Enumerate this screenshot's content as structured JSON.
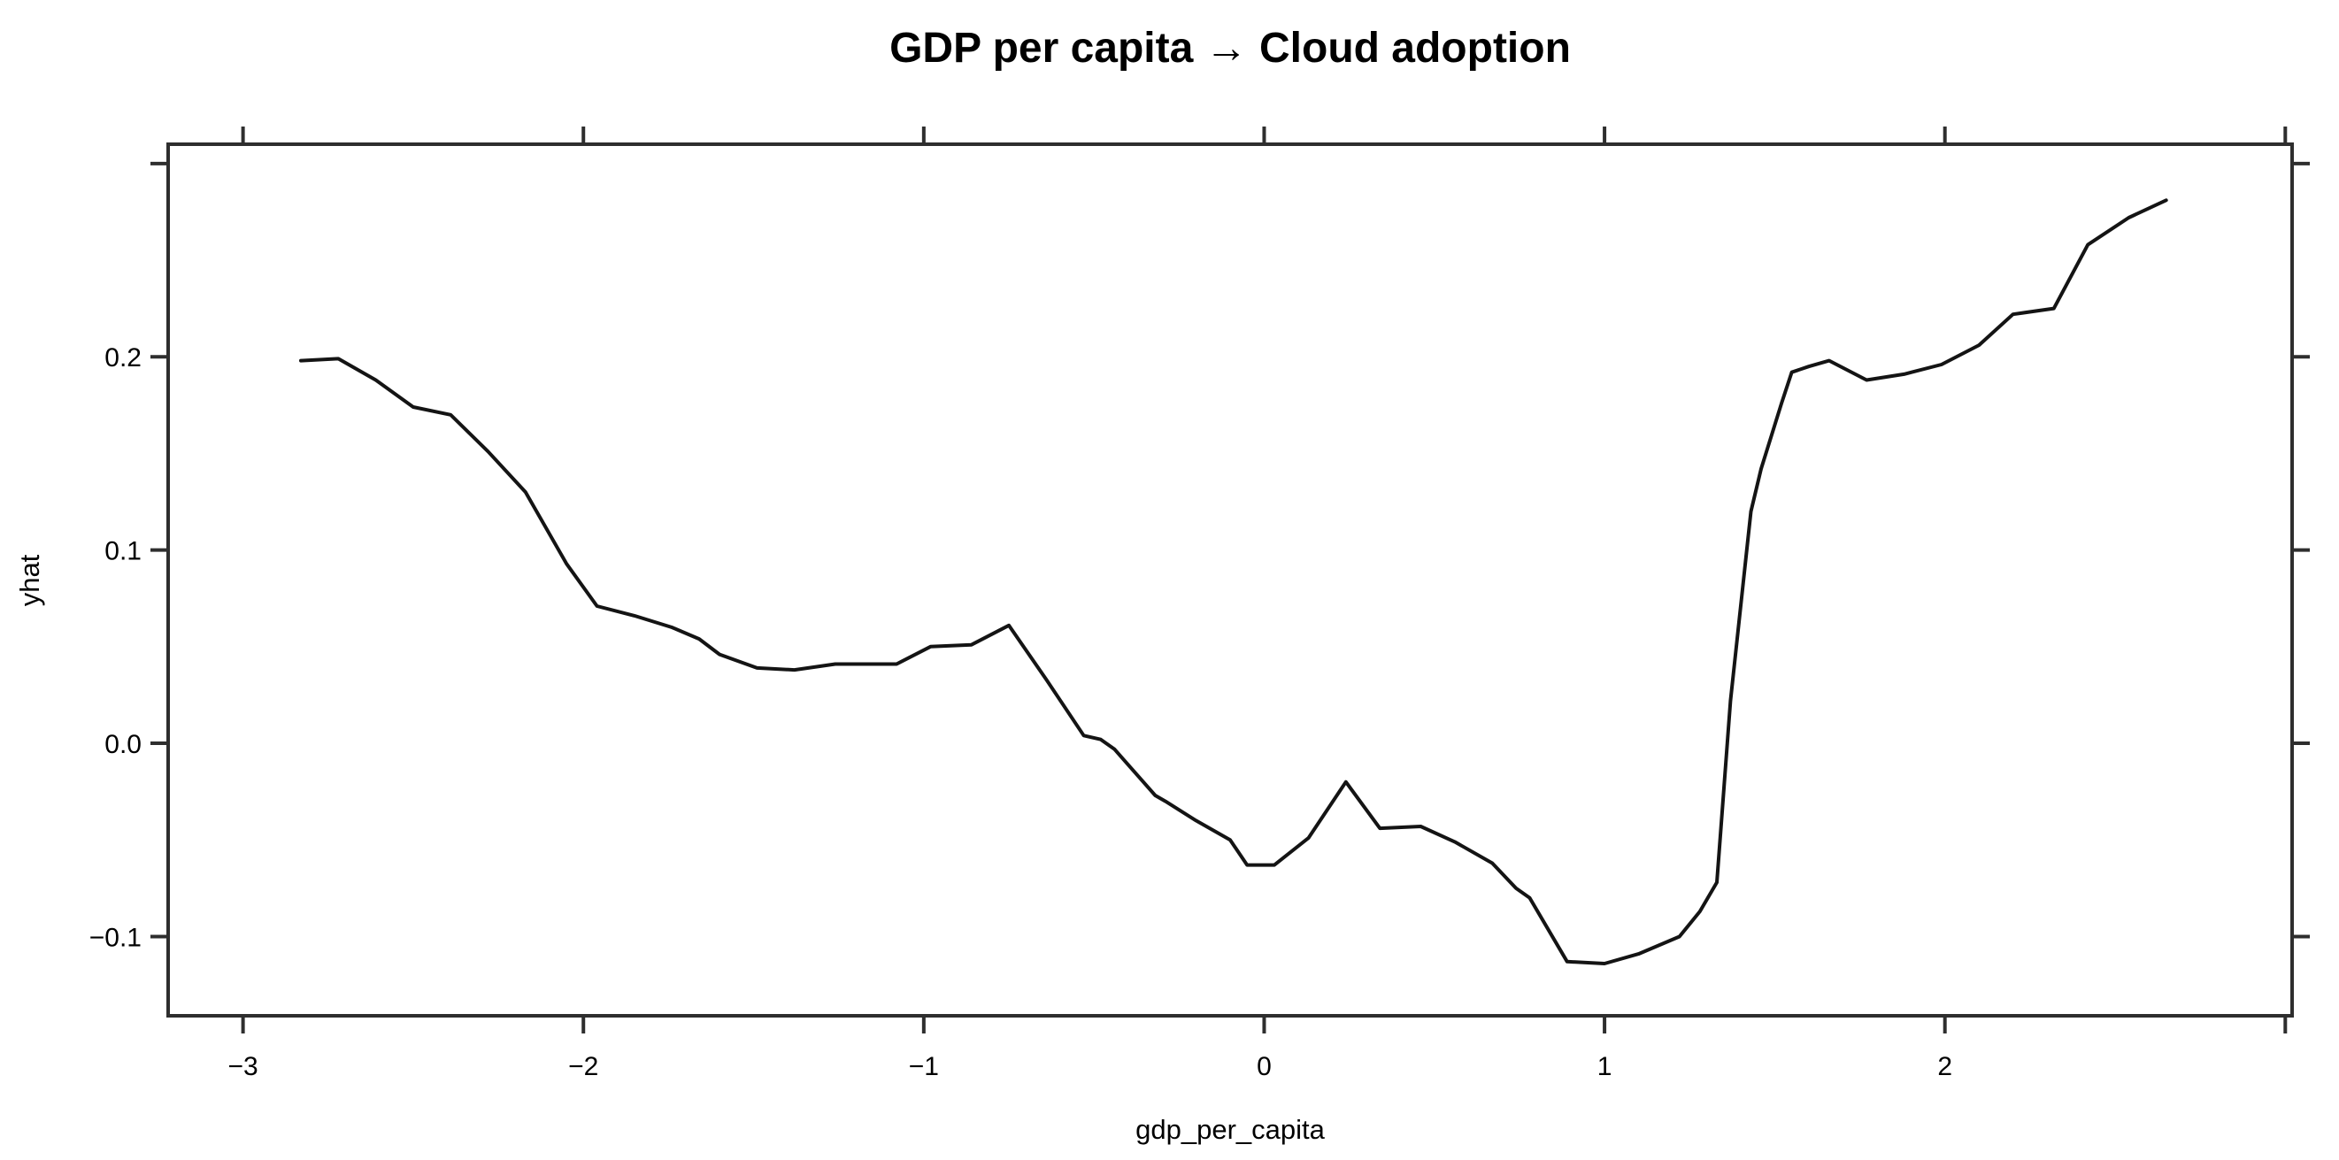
{
  "chart_data": {
    "type": "line",
    "title": "GDP per capita → Cloud adoption",
    "xlabel": "gdp_per_capita",
    "ylabel": "yhat",
    "grid": false,
    "legend": "none",
    "background_color": "#ffffff",
    "line_color": "#141414",
    "axis_color": "#2e2e2e",
    "xlim": [
      -3.22,
      3.02
    ],
    "ylim": [
      -0.141,
      0.31
    ],
    "x_ticks": [
      {
        "v": -3,
        "label": "−3"
      },
      {
        "v": -2,
        "label": "−2"
      },
      {
        "v": -1,
        "label": "−1"
      },
      {
        "v": 0,
        "label": "0"
      },
      {
        "v": 1,
        "label": "1"
      },
      {
        "v": 2,
        "label": "2"
      },
      {
        "v": 3,
        "label": ""
      }
    ],
    "y_ticks": [
      {
        "v": -0.1,
        "label": "−0.1"
      },
      {
        "v": 0.0,
        "label": "0.0"
      },
      {
        "v": 0.1,
        "label": "0.1"
      },
      {
        "v": 0.2,
        "label": "0.2"
      },
      {
        "v": 0.3,
        "label": ""
      }
    ],
    "series": [
      {
        "name": "yhat",
        "x": [
          -2.83,
          -2.72,
          -2.61,
          -2.5,
          -2.39,
          -2.28,
          -2.17,
          -2.05,
          -1.96,
          -1.85,
          -1.74,
          -1.66,
          -1.6,
          -1.49,
          -1.38,
          -1.26,
          -1.15,
          -1.08,
          -0.98,
          -0.86,
          -0.75,
          -0.64,
          -0.53,
          -0.48,
          -0.44,
          -0.32,
          -0.29,
          -0.2,
          -0.1,
          -0.05,
          0.03,
          0.13,
          0.24,
          0.34,
          0.46,
          0.56,
          0.67,
          0.74,
          0.78,
          0.89,
          1.0,
          1.1,
          1.22,
          1.28,
          1.33,
          1.37,
          1.43,
          1.46,
          1.52,
          1.55,
          1.6,
          1.66,
          1.77,
          1.88,
          1.99,
          2.1,
          2.2,
          2.32,
          2.42,
          2.54,
          2.65
        ],
        "y": [
          0.198,
          0.199,
          0.188,
          0.174,
          0.17,
          0.151,
          0.13,
          0.093,
          0.071,
          0.066,
          0.06,
          0.054,
          0.046,
          0.039,
          0.038,
          0.041,
          0.041,
          0.041,
          0.05,
          0.051,
          0.061,
          0.033,
          0.004,
          0.002,
          -0.003,
          -0.027,
          -0.03,
          -0.04,
          -0.05,
          -0.063,
          -0.063,
          -0.049,
          -0.02,
          -0.044,
          -0.043,
          -0.051,
          -0.062,
          -0.075,
          -0.08,
          -0.113,
          -0.114,
          -0.109,
          -0.1,
          -0.087,
          -0.072,
          0.022,
          0.12,
          0.142,
          0.176,
          0.192,
          0.195,
          0.198,
          0.188,
          0.191,
          0.196,
          0.206,
          0.222,
          0.225,
          0.258,
          0.272,
          0.281
        ]
      }
    ]
  }
}
